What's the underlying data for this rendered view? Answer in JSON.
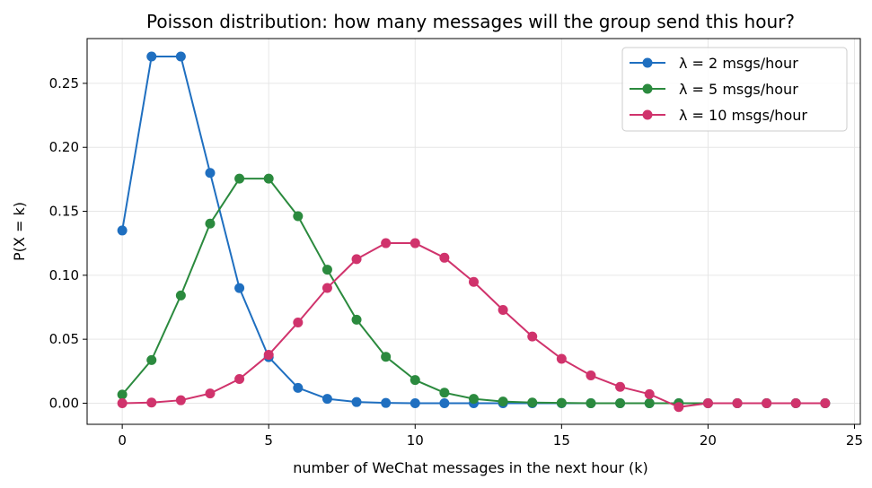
{
  "chart_data": {
    "type": "line",
    "title": "Poisson distribution: how many messages will the group send this hour?",
    "xlabel": "number of WeChat messages in the next hour (k)",
    "ylabel": "P(X = k)",
    "xlim": [
      -1.2,
      25.2
    ],
    "ylim": [
      -0.0165,
      0.285
    ],
    "x_ticks": [
      0,
      5,
      10,
      15,
      20,
      25
    ],
    "x_tick_labels": [
      "0",
      "5",
      "10",
      "15",
      "20",
      "25"
    ],
    "y_ticks": [
      0.0,
      0.05,
      0.1,
      0.15,
      0.2,
      0.25
    ],
    "y_tick_labels": [
      "0.00",
      "0.05",
      "0.10",
      "0.15",
      "0.20",
      "0.25"
    ],
    "grid": true,
    "legend_position": "top-right",
    "x": [
      0,
      1,
      2,
      3,
      4,
      5,
      6,
      7,
      8,
      9,
      10,
      11,
      12,
      13,
      14,
      15,
      16,
      17,
      18,
      19,
      20,
      21,
      22,
      23,
      24
    ],
    "series": [
      {
        "name": "λ = 2 msgs/hour",
        "color": "#1f6fc0",
        "values": [
          0.135,
          0.271,
          0.271,
          0.18,
          0.09,
          0.036,
          0.012,
          0.0034,
          0.0009,
          0.0002,
          0.0,
          0.0,
          0.0,
          0.0,
          0.0,
          0.0,
          0.0,
          0.0,
          0.0,
          0.0,
          0.0,
          0.0,
          0.0,
          0.0,
          0.0
        ]
      },
      {
        "name": "λ = 5 msgs/hour",
        "color": "#2b8a3e",
        "values": [
          0.0067,
          0.0337,
          0.0842,
          0.1404,
          0.1755,
          0.1755,
          0.1462,
          0.1044,
          0.0653,
          0.0363,
          0.0181,
          0.0082,
          0.0034,
          0.0013,
          0.0005,
          0.0002,
          0.0,
          0.0,
          0.0,
          0.0,
          0.0,
          0.0,
          0.0,
          0.0,
          0.0
        ]
      },
      {
        "name": "λ = 10 msgs/hour",
        "color": "#d0336c",
        "values": [
          0.0,
          0.0005,
          0.0023,
          0.0076,
          0.0189,
          0.0378,
          0.0631,
          0.0901,
          0.1126,
          0.1251,
          0.1251,
          0.1137,
          0.0948,
          0.0729,
          0.0521,
          0.0347,
          0.0217,
          0.0128,
          0.0071,
          -0.003,
          0.0,
          0.0,
          0.0,
          0.0,
          0.0
        ]
      }
    ]
  }
}
